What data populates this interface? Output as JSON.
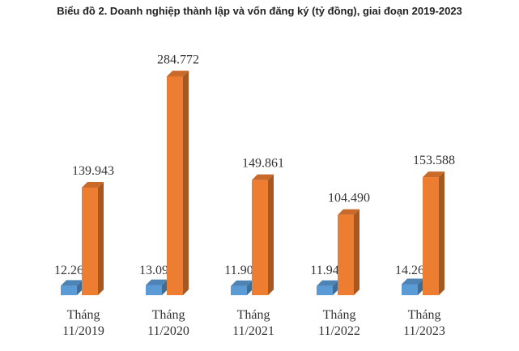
{
  "chart_data": {
    "type": "bar",
    "title": "Biểu đồ 2. Doanh nghiệp thành lập và vốn đăng ký (tỷ đồng), giai đoạn 2019-2023",
    "categories": [
      [
        "Tháng",
        "11/2019"
      ],
      [
        "Tháng",
        "11/2020"
      ],
      [
        "Tháng",
        "11/2021"
      ],
      [
        "Tháng",
        "11/2022"
      ],
      [
        "Tháng",
        "11/2023"
      ]
    ],
    "series": [
      {
        "color": "#5b9bd5",
        "values": [
          12.265,
          13.092,
          11.902,
          11.943,
          14.267
        ]
      },
      {
        "color": "#ed7d31",
        "values": [
          139.943,
          284.772,
          149.861,
          104.49,
          153.588
        ]
      }
    ],
    "value_labels": [
      [
        "12.265",
        "139.943"
      ],
      [
        "13.092",
        "284.772"
      ],
      [
        "11.902",
        "149.861"
      ],
      [
        "11.943",
        "104.490"
      ],
      [
        "14.267",
        "153.588"
      ]
    ],
    "ylim": [
      0,
      300
    ],
    "legend": "none",
    "grid": false,
    "style": "3d"
  }
}
